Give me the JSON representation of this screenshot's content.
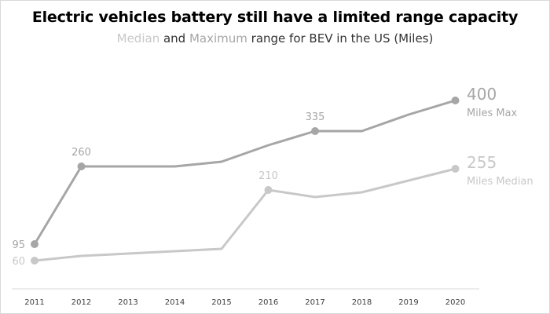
{
  "title": "Electric vehicles battery still have a limited range capacity",
  "subtitle": {
    "word1": "Median",
    "and": " and ",
    "word2": "Maximum",
    "rest": " range for BEV in the US (Miles)"
  },
  "colors": {
    "max": "#a6a6a6",
    "median": "#c8c8c8",
    "axis": "#d9d9d9",
    "tick_text": "#404040"
  },
  "chart_data": {
    "type": "line",
    "title": "Electric vehicles battery still have a limited range capacity",
    "subtitle": "Median and Maximum range for BEV in the US (Miles)",
    "xlabel": "",
    "ylabel": "",
    "x": [
      2011,
      2012,
      2013,
      2014,
      2015,
      2016,
      2017,
      2018,
      2019,
      2020
    ],
    "ylim": [
      0,
      430
    ],
    "grid": false,
    "legend": "none",
    "series": [
      {
        "key": "max",
        "name": "Miles Max",
        "values": [
          95,
          260,
          260,
          260,
          270,
          305,
          335,
          335,
          370,
          400
        ],
        "labels": [
          {
            "index": 0,
            "text": "95"
          },
          {
            "index": 1,
            "text": "260"
          },
          {
            "index": 6,
            "text": "335"
          }
        ],
        "end_value": "400",
        "end_name": "Miles Max"
      },
      {
        "key": "median",
        "name": "Miles Median",
        "values": [
          60,
          70,
          75,
          80,
          85,
          210,
          195,
          205,
          230,
          255
        ],
        "labels": [
          {
            "index": 0,
            "text": "60"
          },
          {
            "index": 5,
            "text": "210"
          }
        ],
        "end_value": "255",
        "end_name": "Miles Median"
      }
    ]
  }
}
